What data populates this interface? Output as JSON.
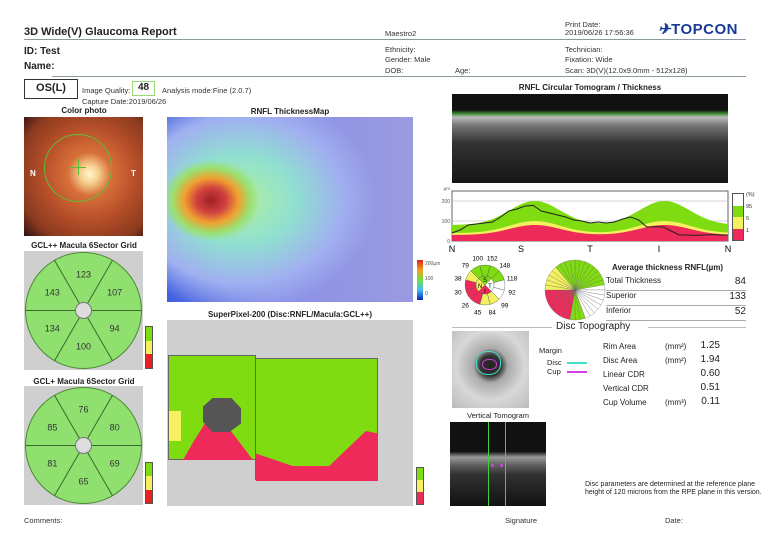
{
  "header": {
    "title": "3D Wide(V) Glaucoma Report",
    "device": "Maestro2",
    "print_date_label": "Print Date:",
    "print_date": "2019/06/26 17:56:36",
    "logo": "TOPCON"
  },
  "patient": {
    "id": "ID: Test",
    "name": "Name:",
    "ethnicity": "Ethnicity:",
    "gender": "Gender: Male",
    "dob": "DOB:",
    "age": "Age:",
    "technician": "Technician:",
    "fixation": "Fixation: Wide",
    "scan": "Scan: 3D(V)(12.0x9.0mm - 512x128)"
  },
  "exam": {
    "eye": "OS(L)",
    "quality_label": "Image Quality:",
    "quality": "48",
    "analysis_mode": "Analysis mode:Fine (2.0.7)",
    "capture_date": "Capture Date:2019/06/26"
  },
  "color_photo": {
    "title": "Color photo",
    "n": "N",
    "t": "T"
  },
  "gclpp": {
    "title": "GCL++ Macula 6Sector Grid",
    "values": [
      "123",
      "107",
      "94",
      "100",
      "134",
      "143"
    ]
  },
  "gclp": {
    "title": "GCL+ Macula 6Sector Grid",
    "values": [
      "76",
      "80",
      "69",
      "65",
      "81",
      "85"
    ]
  },
  "rnfl_map": {
    "title": "RNFL ThicknessMap",
    "scale": [
      "200µm",
      "100",
      "0"
    ]
  },
  "superpixel": {
    "title": "SuperPixel-200 (Disc:RNFL/Macula:GCL++)"
  },
  "legend": {
    "pct": "(%)",
    "p95": "95",
    "p5": "5",
    "p1": "1"
  },
  "circular": {
    "title": "RNFL Circular Tomogram / Thickness",
    "unit": "µm",
    "yticks": [
      "200",
      "100",
      "0"
    ],
    "xlabels": [
      "N",
      "S",
      "T",
      "I",
      "N"
    ]
  },
  "sectors": {
    "values": [
      "100",
      "152",
      "148",
      "118",
      "92",
      "99",
      "84",
      "45",
      "26",
      "30",
      "38",
      "79"
    ],
    "quadrants": [
      "S",
      "N",
      "T",
      "I"
    ]
  },
  "colors": {
    "green": "#7fdc10",
    "yellow": "#f4f060",
    "red": "#ee2a5a",
    "white": "#ffffff",
    "disc": "#40e0c8",
    "cup": "#d040e0"
  },
  "avg": {
    "title": "Average thickness RNFL(µm)",
    "rows": [
      {
        "label": "Total Thickness",
        "value": "84"
      },
      {
        "label": "Superior",
        "value": "133"
      },
      {
        "label": "Inferior",
        "value": "52"
      }
    ]
  },
  "disc": {
    "title": "Disc Topography",
    "margin": "Margin",
    "disc": "Disc",
    "cup": "Cup",
    "rows": [
      {
        "label": "Rim Area",
        "unit": "(mm²)",
        "value": "1.25"
      },
      {
        "label": "Disc Area",
        "unit": "(mm²)",
        "value": "1.94"
      },
      {
        "label": "Linear CDR",
        "unit": "",
        "value": "0.60"
      },
      {
        "label": "Vertical CDR",
        "unit": "",
        "value": "0.51"
      },
      {
        "label": "Cup Volume",
        "unit": "(mm³)",
        "value": "0.11"
      }
    ]
  },
  "vertical": {
    "title": "Vertical Tomogram"
  },
  "note": "Disc parameters are determined at the reference plane height of 120 microns from the RPE plane in this version.",
  "footer": {
    "comments": "Comments:",
    "signature": "Signature",
    "date": "Date:"
  }
}
